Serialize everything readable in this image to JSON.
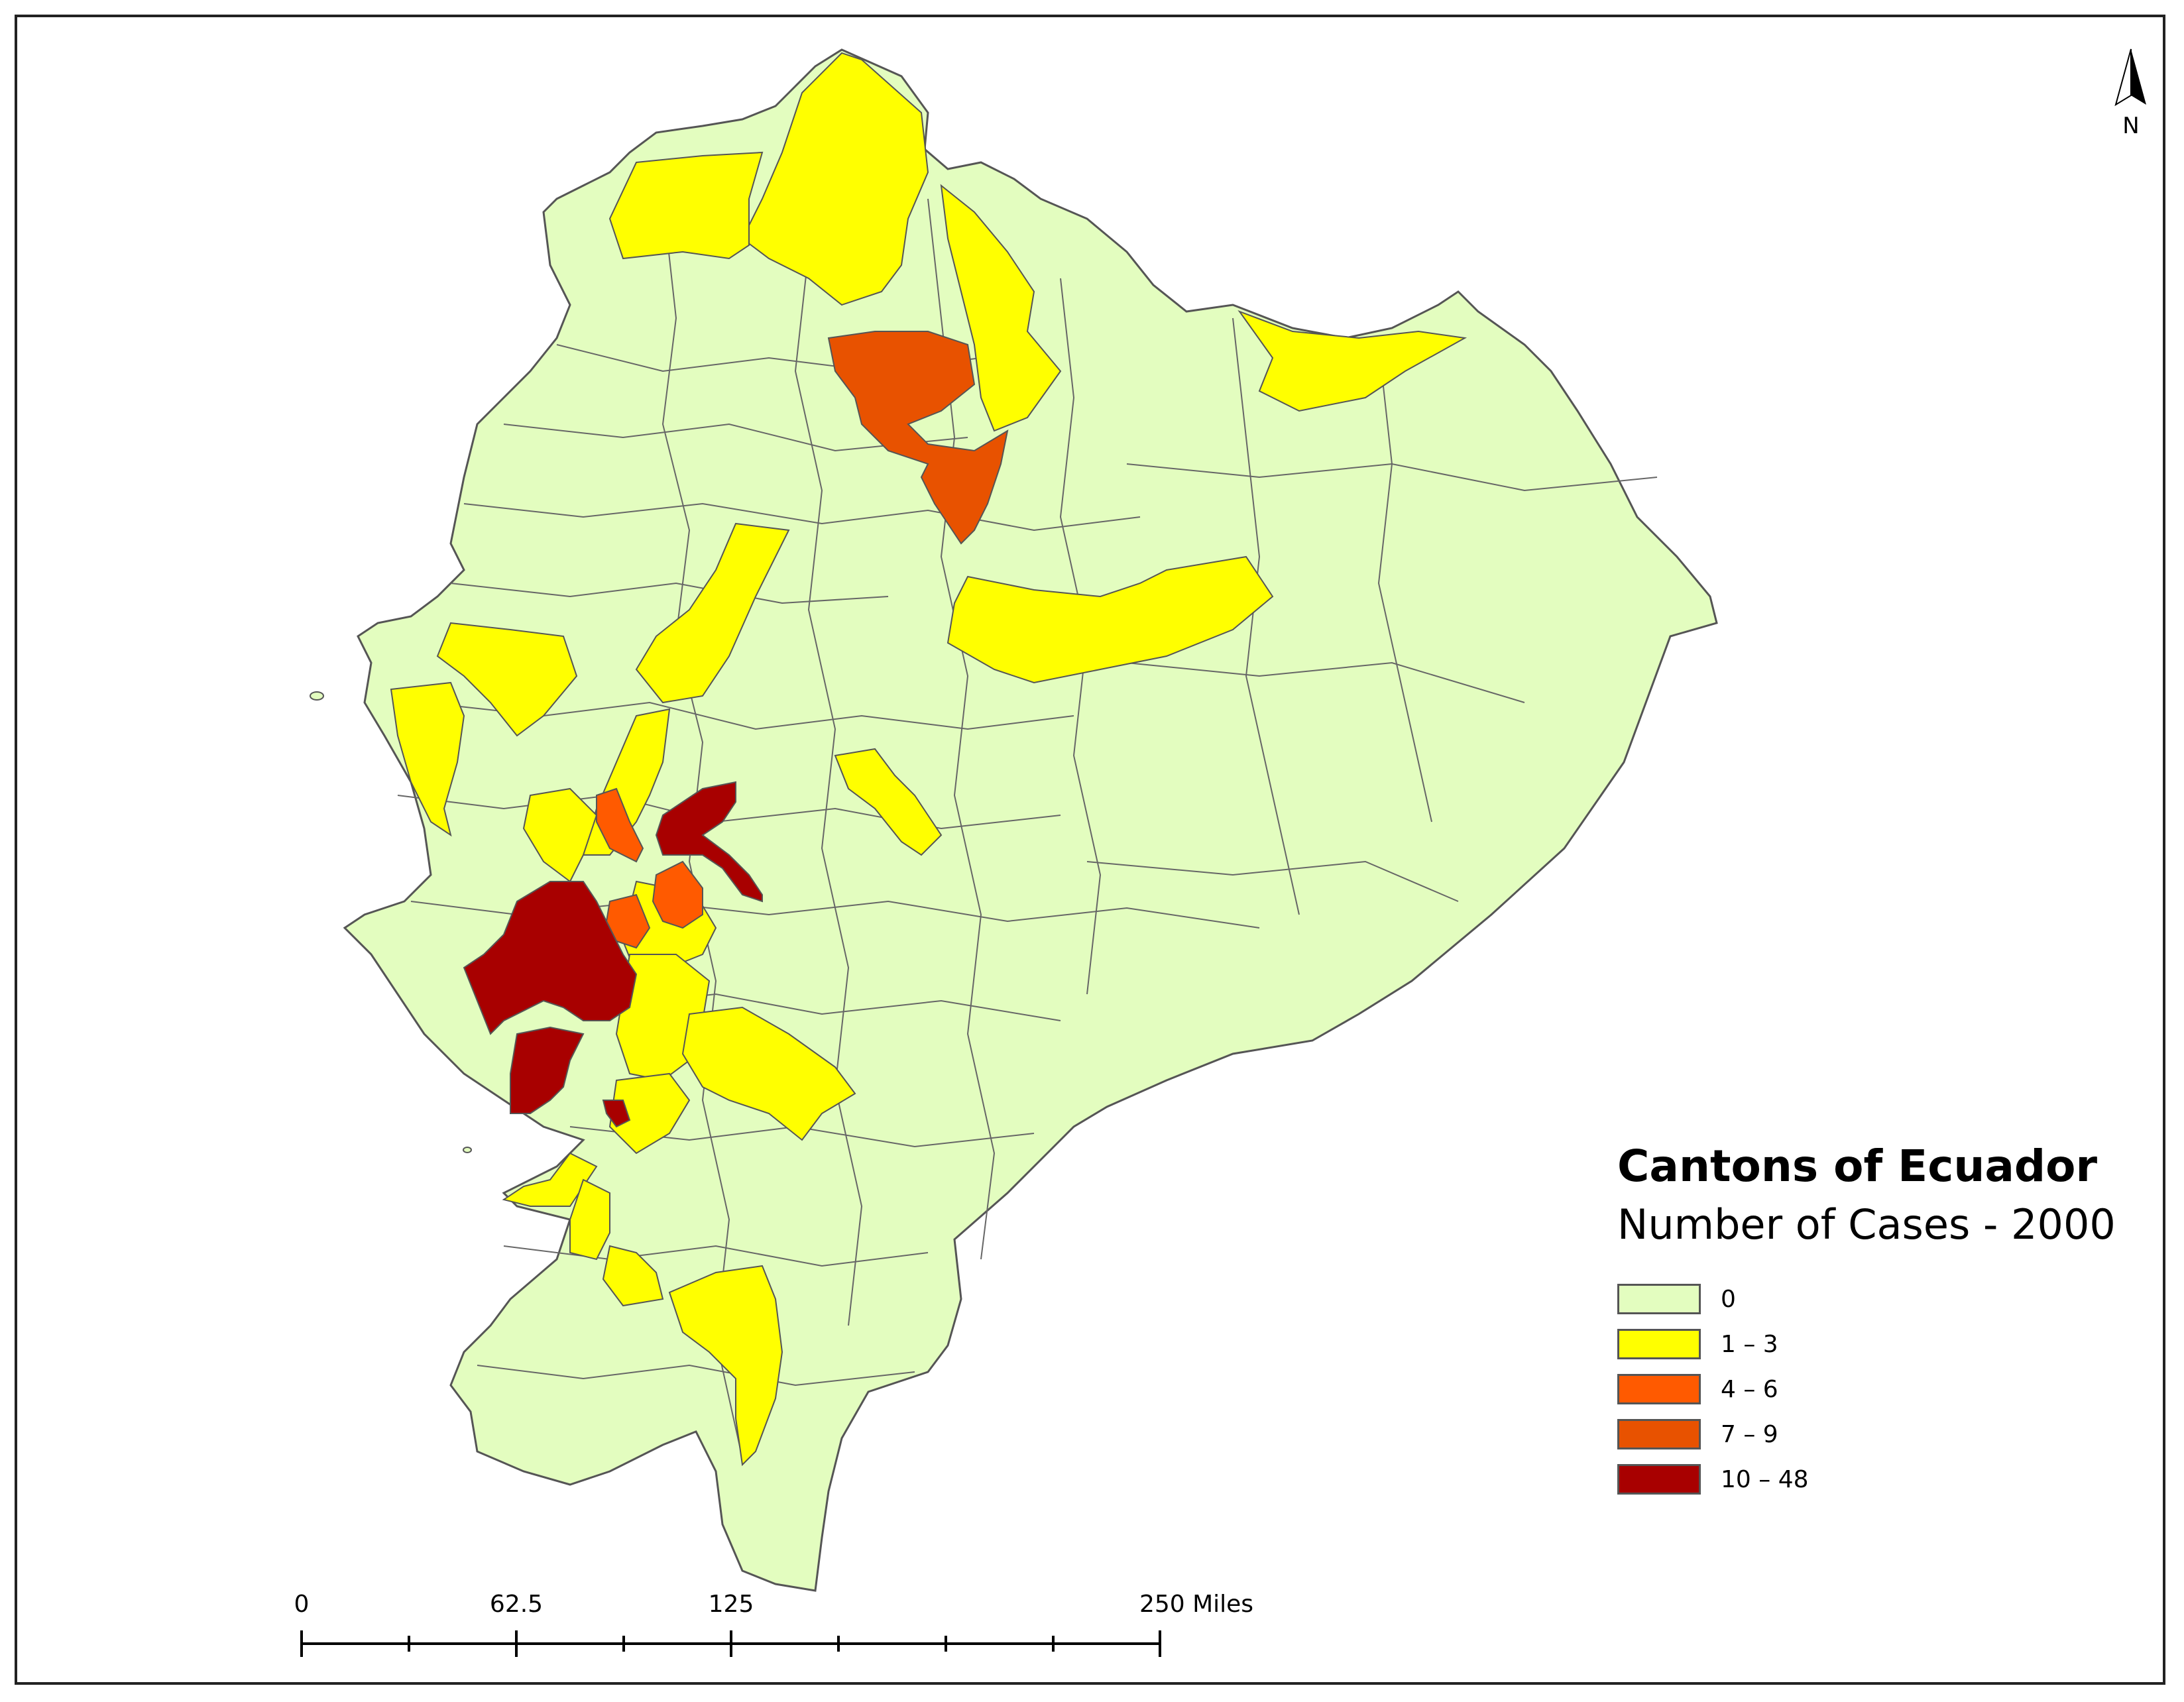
{
  "legend": {
    "title": "Cantons of Ecuador",
    "subtitle": "Number of Cases - 2000",
    "classes": [
      {
        "label": "0",
        "color": "#e3fdbf"
      },
      {
        "label": "1 – 3",
        "color": "#ffff00"
      },
      {
        "label": "4 – 6",
        "color": "#ff5a00"
      },
      {
        "label": "7 – 9",
        "color": "#e85200"
      },
      {
        "label": "10 – 48",
        "color": "#a80000"
      }
    ]
  },
  "scale_bar": {
    "labels": [
      "0",
      "62.5",
      "125",
      "250 Miles"
    ],
    "values": [
      0,
      62.5,
      125,
      250
    ]
  },
  "north_arrow": {
    "letter": "N"
  },
  "colors": {
    "border": "#555555",
    "frame": "#222222"
  }
}
